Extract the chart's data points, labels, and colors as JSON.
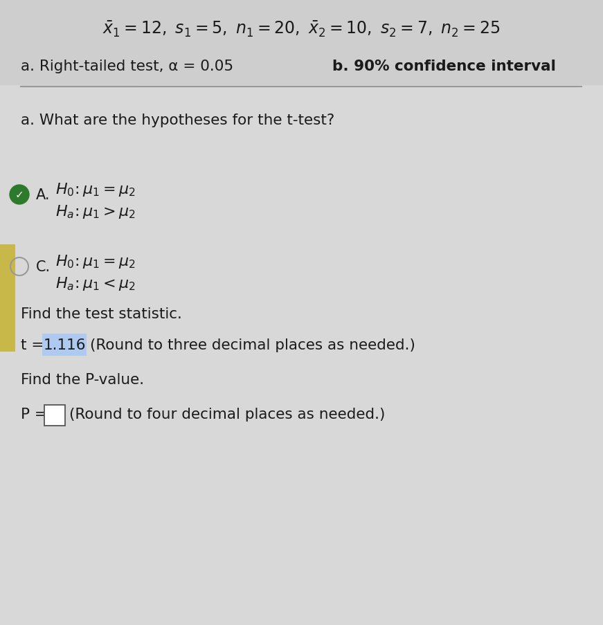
{
  "bg_color_top": "#d4d4d4",
  "bg_color_bottom": "#d8d8d8",
  "header_bg": "#d0d0d0",
  "main_bg": "#d8d8d8",
  "yellow_strip": "#c8b84a",
  "separator_color": "#999999",
  "title_line": "$\\bar{x}_1 = 12,\\ s_1 = 5,\\ n_1 = 20,\\ \\bar{x}_2 = 10,\\ s_2 = 7,\\ n_2 = 25$",
  "subtitle_a": "a. Right-tailed test, α = 0.05",
  "subtitle_b": "b. 90% confidence interval",
  "section_a_title": "a. What are the hypotheses for the t-test?",
  "option_A_label": "A.",
  "option_A_line1": "$H_0\\!:\\mu_1 = \\mu_2$",
  "option_A_line2": "$H_a\\!:\\mu_1 > \\mu_2$",
  "option_C_label": "C.",
  "option_C_line1": "$H_0\\!:\\mu_1 = \\mu_2$",
  "option_C_line2": "$H_a\\!:\\mu_1 < \\mu_2$",
  "find_stat_text": "Find the test statistic.",
  "t_label": "t = ",
  "t_value": "1.116",
  "t_note": "(Round to three decimal places as needed.)",
  "find_p_text": "Find the P-value.",
  "p_label": "P = ",
  "p_note": "(Round to four decimal places as needed.)",
  "text_color": "#1a1a1a",
  "blue_text": "#1a1a80",
  "highlight_bg": "#aecaf0",
  "check_green": "#2d7a2d"
}
